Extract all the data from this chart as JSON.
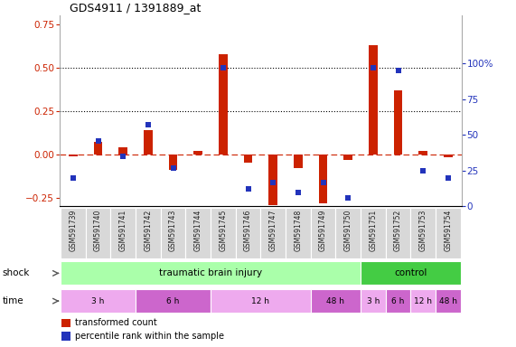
{
  "title": "GDS4911 / 1391889_at",
  "samples": [
    "GSM591739",
    "GSM591740",
    "GSM591741",
    "GSM591742",
    "GSM591743",
    "GSM591744",
    "GSM591745",
    "GSM591746",
    "GSM591747",
    "GSM591748",
    "GSM591749",
    "GSM591750",
    "GSM591751",
    "GSM591752",
    "GSM591753",
    "GSM591754"
  ],
  "red_values": [
    -0.01,
    0.07,
    0.04,
    0.14,
    -0.09,
    0.02,
    0.58,
    -0.05,
    -0.29,
    -0.08,
    -0.28,
    -0.03,
    0.63,
    0.37,
    0.02,
    -0.015
  ],
  "blue_values": [
    0.2,
    0.46,
    0.35,
    0.57,
    0.27,
    null,
    0.97,
    0.12,
    0.17,
    0.1,
    0.17,
    0.06,
    0.97,
    0.95,
    0.25,
    0.2
  ],
  "ylim_left": [
    -0.3,
    0.8
  ],
  "ylim_right": [
    0,
    133.33
  ],
  "yticks_left": [
    -0.25,
    0.0,
    0.25,
    0.5,
    0.75
  ],
  "yticks_right": [
    0,
    25,
    50,
    75,
    100
  ],
  "ytick_right_labels": [
    "0",
    "25",
    "50",
    "75",
    "100%"
  ],
  "hlines": [
    0.25,
    0.5
  ],
  "bg_color": "#ffffff",
  "plot_bg_color": "#ffffff",
  "red_color": "#cc2200",
  "blue_color": "#2233bb",
  "bar_width": 0.35,
  "shock_tbi_color": "#aaffaa",
  "shock_ctrl_color": "#44cc44",
  "time_light_color": "#ee99ee",
  "time_dark_color": "#cc55cc",
  "shock_groups": [
    {
      "label": "traumatic brain injury",
      "start": 0,
      "end": 12,
      "color": "#aaffaa"
    },
    {
      "label": "control",
      "start": 12,
      "end": 16,
      "color": "#44cc44"
    }
  ],
  "time_groups": [
    {
      "label": "3 h",
      "start": 0,
      "end": 3,
      "color": "#eeaaee"
    },
    {
      "label": "6 h",
      "start": 3,
      "end": 6,
      "color": "#cc66cc"
    },
    {
      "label": "12 h",
      "start": 6,
      "end": 10,
      "color": "#eeaaee"
    },
    {
      "label": "48 h",
      "start": 10,
      "end": 12,
      "color": "#cc66cc"
    },
    {
      "label": "3 h",
      "start": 12,
      "end": 13,
      "color": "#eeaaee"
    },
    {
      "label": "6 h",
      "start": 13,
      "end": 14,
      "color": "#cc66cc"
    },
    {
      "label": "12 h",
      "start": 14,
      "end": 15,
      "color": "#eeaaee"
    },
    {
      "label": "48 h",
      "start": 15,
      "end": 16,
      "color": "#cc66cc"
    }
  ],
  "legend_items": [
    {
      "label": "transformed count",
      "color": "#cc2200"
    },
    {
      "label": "percentile rank within the sample",
      "color": "#2233bb"
    }
  ]
}
